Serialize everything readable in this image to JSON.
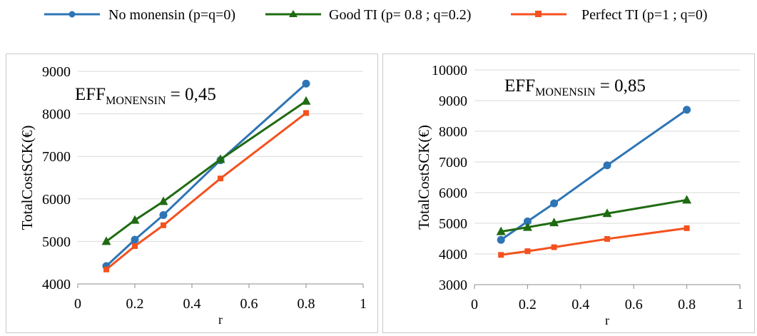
{
  "legend": [
    {
      "name": "No monensin  (p=q=0)",
      "color": "#2e75b6",
      "marker": "circle"
    },
    {
      "name": "Good TI (p= 0.8 ; q=0.2)",
      "color": "#1f6b12",
      "marker": "triangle"
    },
    {
      "name": "Perfect TI (p=1 ; q=0)",
      "color": "#f4511e",
      "marker": "square"
    }
  ],
  "chart_data": [
    {
      "type": "line",
      "annotation": {
        "base": "EFF",
        "sub": "MONENSIN",
        "rest": " = 0,45"
      },
      "xlabel": "r",
      "ylabel": "TotalCostSCK(€)",
      "xlim": [
        0,
        1
      ],
      "ylim": [
        4000,
        9000
      ],
      "xticks": [
        0,
        0.2,
        0.4,
        0.6,
        0.8,
        1
      ],
      "xtick_labels": [
        "0",
        "0.2",
        "0.4",
        "0.6",
        "0.8",
        "1"
      ],
      "yticks": [
        4000,
        5000,
        6000,
        7000,
        8000,
        9000
      ],
      "ytick_labels": [
        "4000",
        "5000",
        "6000",
        "7000",
        "8000",
        "9000"
      ],
      "grid": true,
      "series": [
        {
          "name": "No monensin  (p=q=0)",
          "x": [
            0.1,
            0.2,
            0.3,
            0.5,
            0.8
          ],
          "values": [
            4420,
            5040,
            5620,
            6910,
            8710
          ]
        },
        {
          "name": "Good TI (p= 0.8 ; q=0.2)",
          "x": [
            0.1,
            0.2,
            0.3,
            0.5,
            0.8
          ],
          "values": [
            5000,
            5500,
            5940,
            6930,
            8300
          ]
        },
        {
          "name": "Perfect TI (p=1 ; q=0)",
          "x": [
            0.1,
            0.2,
            0.3,
            0.5,
            0.8
          ],
          "values": [
            4340,
            4890,
            5380,
            6480,
            8020
          ]
        }
      ]
    },
    {
      "type": "line",
      "annotation": {
        "base": "EFF",
        "sub": "MONENSIN",
        "rest": " = 0,85"
      },
      "xlabel": "r",
      "ylabel": "TotalCostSCK(€)",
      "xlim": [
        0,
        1
      ],
      "ylim": [
        3000,
        10000
      ],
      "xticks": [
        0,
        0.2,
        0.4,
        0.6,
        0.8,
        1
      ],
      "xtick_labels": [
        "0",
        "0.2",
        "0.4",
        "0.6",
        "0.8",
        "1"
      ],
      "yticks": [
        3000,
        4000,
        5000,
        6000,
        7000,
        8000,
        9000,
        10000
      ],
      "ytick_labels": [
        "3000",
        "4000",
        "5000",
        "6000",
        "7000",
        "8000",
        "9000",
        "10000"
      ],
      "grid": true,
      "series": [
        {
          "name": "No monensin  (p=q=0)",
          "x": [
            0.1,
            0.2,
            0.3,
            0.5,
            0.8
          ],
          "values": [
            4460,
            5060,
            5650,
            6890,
            8700
          ]
        },
        {
          "name": "Good TI (p= 0.8 ; q=0.2)",
          "x": [
            0.1,
            0.2,
            0.3,
            0.5,
            0.8
          ],
          "values": [
            4730,
            4870,
            5020,
            5320,
            5760
          ]
        },
        {
          "name": "Perfect TI (p=1 ; q=0)",
          "x": [
            0.1,
            0.2,
            0.3,
            0.5,
            0.8
          ],
          "values": [
            3970,
            4090,
            4220,
            4490,
            4840
          ]
        }
      ]
    }
  ]
}
